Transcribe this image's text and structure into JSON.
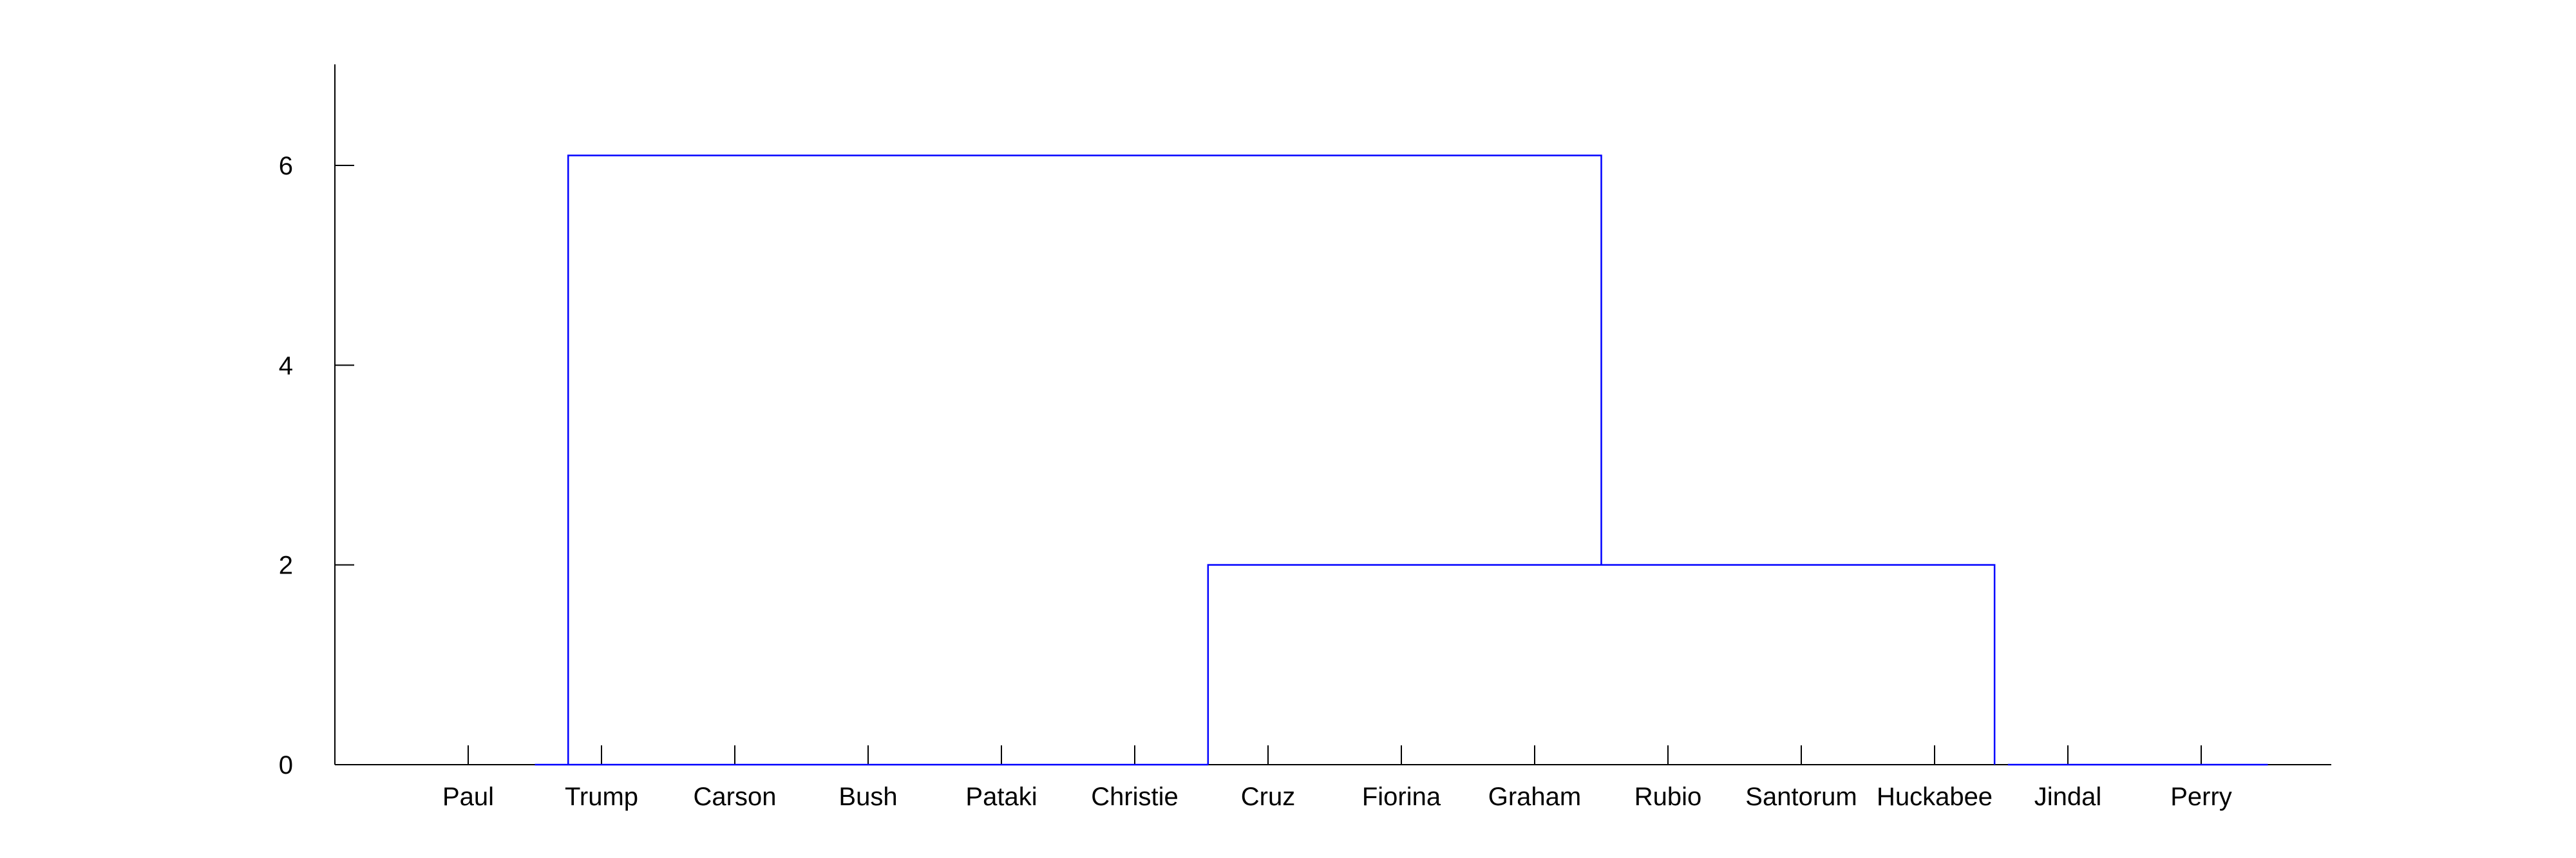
{
  "chart_data": {
    "type": "dendrogram",
    "title": "",
    "xlabel": "",
    "ylabel": "",
    "ylim": [
      0,
      7
    ],
    "yticks": [
      0,
      2,
      4,
      6
    ],
    "leaves": [
      "Paul",
      "Trump",
      "Carson",
      "Bush",
      "Pataki",
      "Christie",
      "Cruz",
      "Fiorina",
      "Graham",
      "Rubio",
      "Santorum",
      "Huckabee",
      "Jindal",
      "Perry"
    ],
    "merges": [
      {
        "left": [
          "Paul"
        ],
        "right": [
          "Trump",
          "Carson",
          "Bush",
          "Pataki",
          "Christie",
          "Cruz"
        ],
        "height": 0
      },
      {
        "left": [
          "Fiorina",
          "Graham",
          "Rubio",
          "Santorum",
          "Huckabee",
          "Jindal"
        ],
        "right": [
          "Perry"
        ],
        "height": 0
      },
      {
        "left": [
          "Paul",
          "Trump",
          "Carson",
          "Bush",
          "Pataki",
          "Christie",
          "Cruz"
        ],
        "right": [
          "Fiorina",
          "Graham",
          "Rubio",
          "Santorum",
          "Huckabee",
          "Jindal",
          "Perry"
        ],
        "height": 2
      },
      {
        "left": [
          "Paul",
          "Trump",
          "Carson",
          "Bush",
          "Pataki",
          "Christie",
          "Cruz",
          "Fiorina",
          "Graham",
          "Rubio",
          "Santorum",
          "Huckabee",
          "Jindal",
          "Perry"
        ],
        "right": [],
        "height": 6.1
      }
    ],
    "links": [
      {
        "x_left": 1.5,
        "x_right": 6.55,
        "height": 0
      },
      {
        "x_left": 12.55,
        "x_right": 14.5,
        "height": 0
      },
      {
        "x_left": 6.55,
        "x_right": 12.45,
        "height": 2
      },
      {
        "x_left": 1.75,
        "x_right": 9.5,
        "height": 6.1
      }
    ],
    "link_color": "#0000ff",
    "grid": false,
    "legend": "none"
  }
}
